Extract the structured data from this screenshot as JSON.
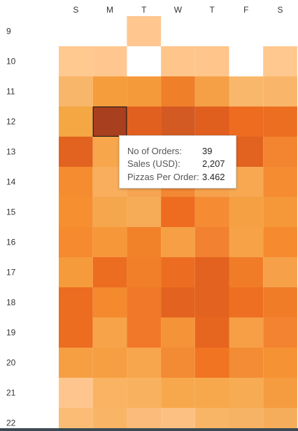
{
  "chart_data": {
    "type": "heatmap",
    "days": [
      "S",
      "M",
      "T",
      "W",
      "T",
      "F",
      "S"
    ],
    "hours": [
      "9",
      "10",
      "11",
      "12",
      "13",
      "14",
      "15",
      "16",
      "17",
      "18",
      "19",
      "20",
      "21",
      "22"
    ],
    "cells": [
      [
        null,
        null,
        "#ffc68f",
        null,
        null,
        null,
        null
      ],
      [
        "#ffc98f",
        "#ffc78f",
        null,
        "#ffc58a",
        "#ffc58a",
        null,
        "#ffc88e"
      ],
      [
        "#f8b66a",
        "#f59d3d",
        "#f59a3a",
        "#f07f29",
        "#f5a046",
        "#f9b76b",
        "#f9b66a"
      ],
      [
        "#f4a743",
        "#a8401f",
        "#e2601f",
        "#d35a22",
        "#e05f1f",
        "#ed6c20",
        "#ec6e20"
      ],
      [
        "#e2621f",
        "#f7a64b",
        "#f4a149",
        "#f29a44",
        "#f07c2a",
        "#e2621f",
        "#f38430"
      ],
      [
        "#f58c30",
        "#f8ae5c",
        "#f6a451",
        "#f28734",
        "#f6a24c",
        "#f7a851",
        "#f58c32"
      ],
      [
        "#f68f30",
        "#f6a64c",
        "#f6ab56",
        "#ee6c20",
        "#f58b33",
        "#f6a044",
        "#f59839"
      ],
      [
        "#f58a2e",
        "#f6973a",
        "#f2822a",
        "#f69f44",
        "#f28131",
        "#f7a247",
        "#f58a2e"
      ],
      [
        "#f69b3c",
        "#ec6c20",
        "#f17e28",
        "#ec6d21",
        "#e3621f",
        "#f17c28",
        "#f6a04a"
      ],
      [
        "#ec6c20",
        "#f4892e",
        "#f07828",
        "#e3621f",
        "#e3621f",
        "#ee6f22",
        "#f17c28"
      ],
      [
        "#ec6c20",
        "#f7a34a",
        "#f07828",
        "#f59339",
        "#e6651f",
        "#f69f46",
        "#f38331"
      ],
      [
        "#f59f42",
        "#f59f42",
        "#f7a64d",
        "#f38a34",
        "#f07422",
        "#f38c34",
        "#f59233"
      ],
      [
        "#fec68e",
        "#fab363",
        "#f8b25f",
        "#f7a84c",
        "#f7a84c",
        "#f7ac54",
        "#f59c40"
      ],
      [
        "#fbbd75",
        "#f9b466",
        "#fbbb7a",
        "#fcc182",
        "#f9b566",
        "#f7b365",
        "#f6ad5b"
      ]
    ],
    "selected": {
      "day_index": 1,
      "hour": "12"
    },
    "tooltip": {
      "rows": [
        {
          "label": "No of Orders:",
          "value": "39"
        },
        {
          "label": "Sales (USD):",
          "value": "2,207"
        },
        {
          "label": "Pizzas Per Order:",
          "value": "3.462"
        }
      ]
    }
  }
}
